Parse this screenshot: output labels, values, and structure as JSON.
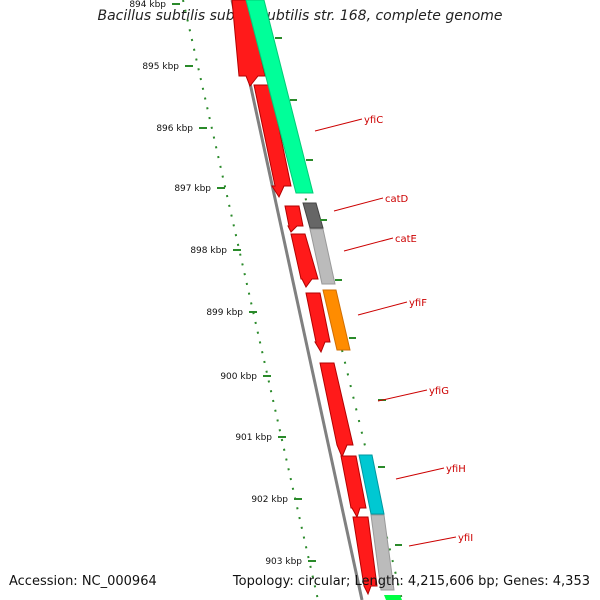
{
  "title": "Bacillus subtilis subsp. subtilis str. 168, complete genome",
  "accession": "Accession: NC_000964",
  "summary": "Topology: circular; Length: 4,215,606 bp; Genes: 4,353",
  "colors": {
    "forward_cds": "#ff0000",
    "gene_yfiC": "#00ff99",
    "gene_catD": "#666666",
    "gene_catE": "#bbbbbb",
    "gene_yfiF": "#ff8c00",
    "gene_yfiH": "#00c8d2",
    "gene_yfiI": "#bbbbbb",
    "axis_ticks": "#008000",
    "backbone": "#808080",
    "label_text": "#cc0000"
  },
  "chart_data": {
    "type": "genome-map",
    "position_axis": {
      "unit": "kbp",
      "tick_labels": [
        "894 kbp",
        "895 kbp",
        "896 kbp",
        "897 kbp",
        "898 kbp",
        "899 kbp",
        "900 kbp",
        "901 kbp",
        "902 kbp",
        "903 kbp"
      ],
      "tick_values": [
        894,
        895,
        896,
        897,
        898,
        899,
        900,
        901,
        902,
        903
      ]
    },
    "feature_labels": [
      "yfiC",
      "catD",
      "catE",
      "yfiF",
      "yfiG",
      "yfiH",
      "yfiI"
    ]
  }
}
